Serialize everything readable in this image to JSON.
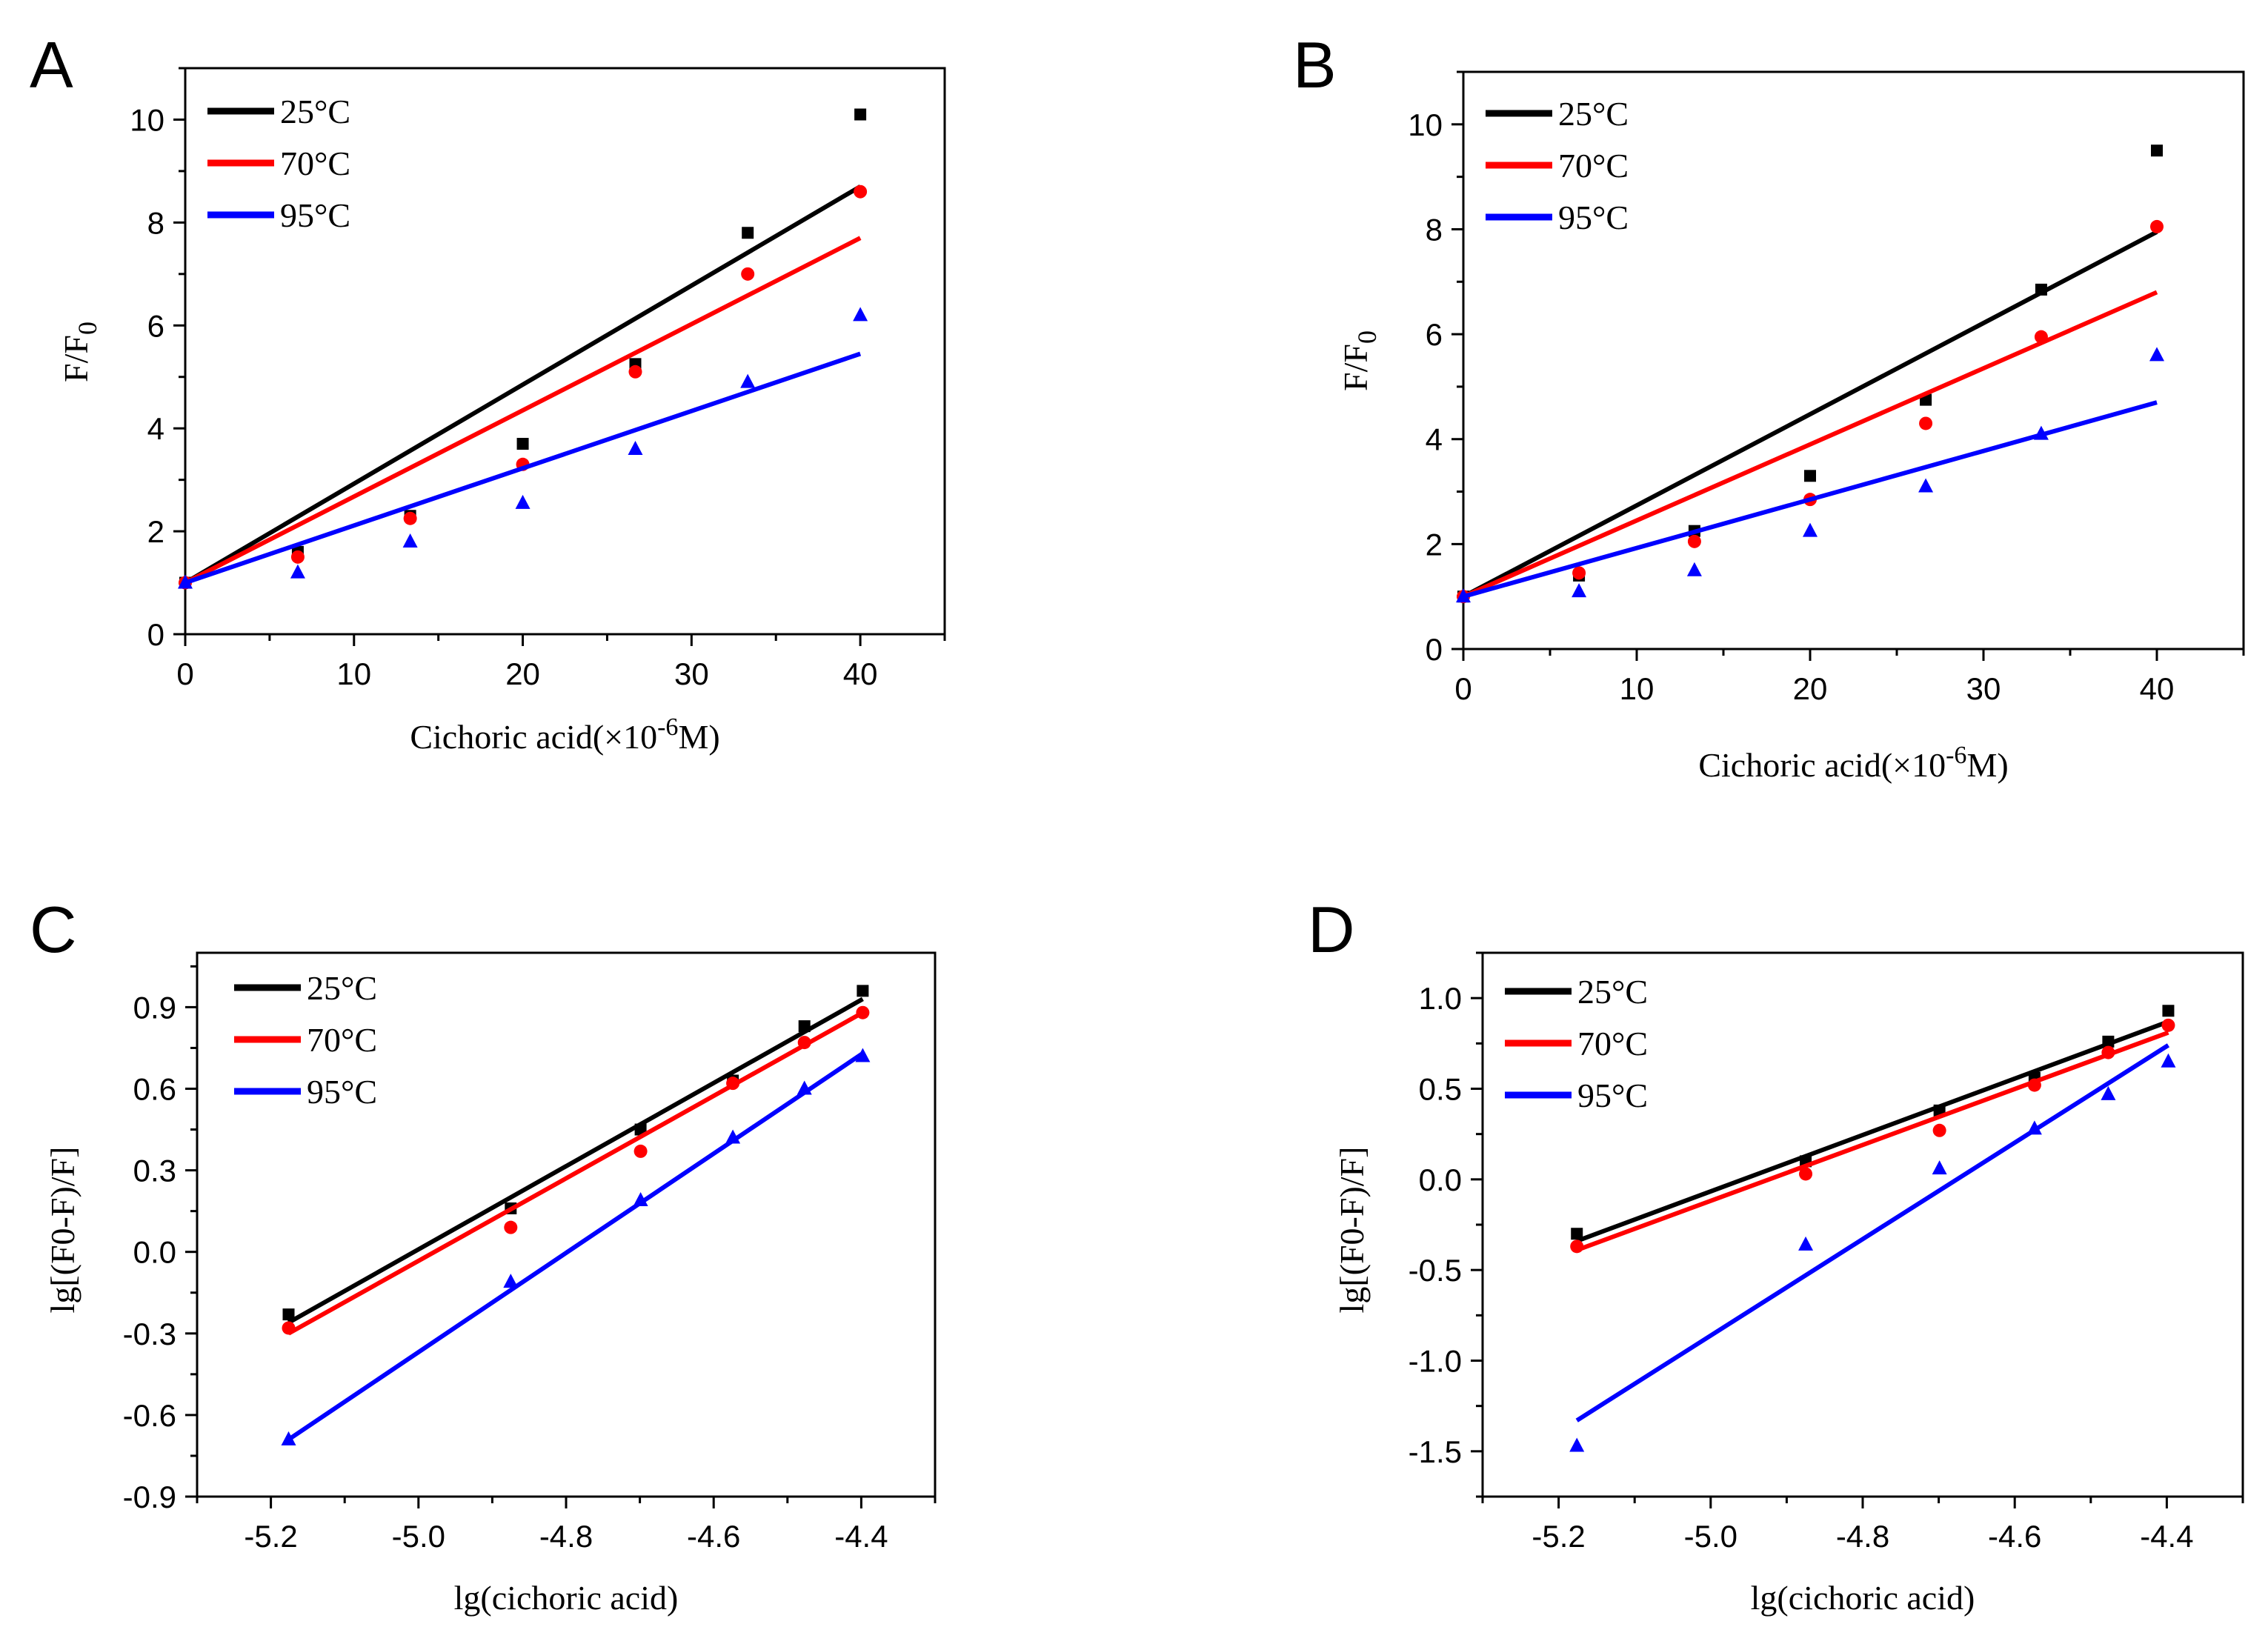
{
  "chart_data": [
    {
      "panel": "A",
      "type": "scatter",
      "xlabel": "Cichoric acid(×10",
      "xlabel_sup": "-6",
      "xlabel_end": "M)",
      "ylabel": "F/F",
      "ylabel_sub": "0",
      "xlim": [
        0,
        45
      ],
      "ylim": [
        0,
        11
      ],
      "xticks": [
        0,
        10,
        20,
        30,
        40
      ],
      "xtick_labels": [
        "0",
        "10",
        "20",
        "30",
        "40"
      ],
      "yticks": [
        0,
        2,
        4,
        6,
        8,
        10
      ],
      "ytick_labels": [
        "0",
        "2",
        "4",
        "6",
        "8",
        "10"
      ],
      "legend_position": "top-left",
      "series": [
        {
          "name": "25°C",
          "color": "#000000",
          "marker": "square",
          "x": [
            0,
            6.67,
            13.33,
            20,
            26.67,
            33.33,
            40
          ],
          "y": [
            1.0,
            1.6,
            2.3,
            3.7,
            5.25,
            7.8,
            10.1
          ],
          "fit": [
            [
              0,
              1.0
            ],
            [
              40,
              8.7
            ]
          ]
        },
        {
          "name": "70°C",
          "color": "#ff0000",
          "marker": "circle",
          "x": [
            0,
            6.67,
            13.33,
            20,
            26.67,
            33.33,
            40
          ],
          "y": [
            1.0,
            1.5,
            2.25,
            3.3,
            5.1,
            7.0,
            8.6
          ],
          "fit": [
            [
              0,
              1.0
            ],
            [
              40,
              7.7
            ]
          ]
        },
        {
          "name": "95°C",
          "color": "#0000ff",
          "marker": "triangle",
          "x": [
            0,
            6.67,
            13.33,
            20,
            26.67,
            33.33,
            40
          ],
          "y": [
            1.0,
            1.2,
            1.8,
            2.55,
            3.6,
            4.9,
            6.2
          ],
          "fit": [
            [
              0,
              1.0
            ],
            [
              40,
              5.45
            ]
          ]
        }
      ]
    },
    {
      "panel": "B",
      "type": "scatter",
      "xlabel": "Cichoric acid(×10",
      "xlabel_sup": "-6",
      "xlabel_end": "M)",
      "ylabel": "F/F",
      "ylabel_sub": "0",
      "xlim": [
        0,
        45
      ],
      "ylim": [
        0,
        11
      ],
      "xticks": [
        0,
        10,
        20,
        30,
        40
      ],
      "xtick_labels": [
        "0",
        "10",
        "20",
        "30",
        "40"
      ],
      "yticks": [
        0,
        2,
        4,
        6,
        8,
        10
      ],
      "ytick_labels": [
        "0",
        "2",
        "4",
        "6",
        "8",
        "10"
      ],
      "legend_position": "top-left",
      "series": [
        {
          "name": "25°C",
          "color": "#000000",
          "marker": "square",
          "x": [
            0,
            6.67,
            13.33,
            20,
            26.67,
            33.33,
            40
          ],
          "y": [
            1.0,
            1.4,
            2.25,
            3.3,
            4.75,
            6.85,
            9.5
          ],
          "fit": [
            [
              0,
              1.0
            ],
            [
              40,
              7.95
            ]
          ]
        },
        {
          "name": "70°C",
          "color": "#ff0000",
          "marker": "circle",
          "x": [
            0,
            6.67,
            13.33,
            20,
            26.67,
            33.33,
            40
          ],
          "y": [
            1.0,
            1.45,
            2.05,
            2.85,
            4.3,
            5.95,
            8.05
          ],
          "fit": [
            [
              0,
              1.0
            ],
            [
              40,
              6.8
            ]
          ]
        },
        {
          "name": "95°C",
          "color": "#0000ff",
          "marker": "triangle",
          "x": [
            0,
            6.67,
            13.33,
            20,
            26.67,
            33.33,
            40
          ],
          "y": [
            1.0,
            1.1,
            1.5,
            2.25,
            3.1,
            4.1,
            5.6
          ],
          "fit": [
            [
              0,
              1.0
            ],
            [
              40,
              4.7
            ]
          ]
        }
      ]
    },
    {
      "panel": "C",
      "type": "scatter",
      "xlabel": "lg(cichoric acid)",
      "ylabel": "lg[(F0-F)/F]",
      "xlim": [
        -5.3,
        -4.3
      ],
      "ylim": [
        -0.9,
        1.1
      ],
      "xticks": [
        -5.2,
        -5.0,
        -4.8,
        -4.6,
        -4.4
      ],
      "xtick_labels": [
        "-5.2",
        "-5.0",
        "-4.8",
        "-4.6",
        "-4.4"
      ],
      "yticks": [
        -0.9,
        -0.6,
        -0.3,
        0.0,
        0.3,
        0.6,
        0.9
      ],
      "ytick_labels": [
        "-0.9",
        "-0.6",
        "-0.3",
        "0.0",
        "0.3",
        "0.6",
        "0.9"
      ],
      "legend_position": "top-left",
      "series": [
        {
          "name": "25°C",
          "color": "#000000",
          "marker": "square",
          "x": [
            -5.176,
            -4.875,
            -4.699,
            -4.574,
            -4.477,
            -4.398
          ],
          "y": [
            -0.23,
            0.16,
            0.45,
            0.63,
            0.83,
            0.96
          ],
          "fit": [
            [
              -5.176,
              -0.26
            ],
            [
              -4.398,
              0.93
            ]
          ]
        },
        {
          "name": "70°C",
          "color": "#ff0000",
          "marker": "circle",
          "x": [
            -5.176,
            -4.875,
            -4.699,
            -4.574,
            -4.477,
            -4.398
          ],
          "y": [
            -0.28,
            0.09,
            0.37,
            0.62,
            0.77,
            0.88
          ],
          "fit": [
            [
              -5.176,
              -0.3
            ],
            [
              -4.398,
              0.88
            ]
          ]
        },
        {
          "name": "95°C",
          "color": "#0000ff",
          "marker": "triangle",
          "x": [
            -5.176,
            -4.875,
            -4.699,
            -4.574,
            -4.477,
            -4.398
          ],
          "y": [
            -0.69,
            -0.11,
            0.19,
            0.42,
            0.6,
            0.72
          ],
          "fit": [
            [
              -5.176,
              -0.69
            ],
            [
              -4.398,
              0.73
            ]
          ]
        }
      ]
    },
    {
      "panel": "D",
      "type": "scatter",
      "xlabel": "lg(cichoric acid)",
      "ylabel": "lg[(F0-F)/F]",
      "xlim": [
        -5.3,
        -4.3
      ],
      "ylim": [
        -1.75,
        1.25
      ],
      "xticks": [
        -5.2,
        -5.0,
        -4.8,
        -4.6,
        -4.4
      ],
      "xtick_labels": [
        "-5.2",
        "-5.0",
        "-4.8",
        "-4.6",
        "-4.4"
      ],
      "yticks": [
        -1.5,
        -1.0,
        -0.5,
        0.0,
        0.5,
        1.0
      ],
      "ytick_labels": [
        "-1.5",
        "-1.0",
        "-0.5",
        "0.0",
        "0.5",
        "1.0"
      ],
      "legend_position": "top-left",
      "series": [
        {
          "name": "25°C",
          "color": "#000000",
          "marker": "square",
          "x": [
            -5.176,
            -4.875,
            -4.699,
            -4.574,
            -4.477,
            -4.398
          ],
          "y": [
            -0.3,
            0.1,
            0.38,
            0.56,
            0.76,
            0.93
          ],
          "fit": [
            [
              -5.176,
              -0.34
            ],
            [
              -4.398,
              0.87
            ]
          ]
        },
        {
          "name": "70°C",
          "color": "#ff0000",
          "marker": "circle",
          "x": [
            -5.176,
            -4.875,
            -4.699,
            -4.574,
            -4.477,
            -4.398
          ],
          "y": [
            -0.37,
            0.03,
            0.27,
            0.52,
            0.7,
            0.85
          ],
          "fit": [
            [
              -5.176,
              -0.39
            ],
            [
              -4.398,
              0.81
            ]
          ]
        },
        {
          "name": "95°C",
          "color": "#0000ff",
          "marker": "triangle",
          "x": [
            -5.176,
            -4.875,
            -4.699,
            -4.574,
            -4.477,
            -4.398
          ],
          "y": [
            -1.47,
            -0.36,
            0.06,
            0.28,
            0.47,
            0.65
          ],
          "fit": [
            [
              -5.176,
              -1.33
            ],
            [
              -4.398,
              0.74
            ]
          ]
        }
      ]
    }
  ]
}
